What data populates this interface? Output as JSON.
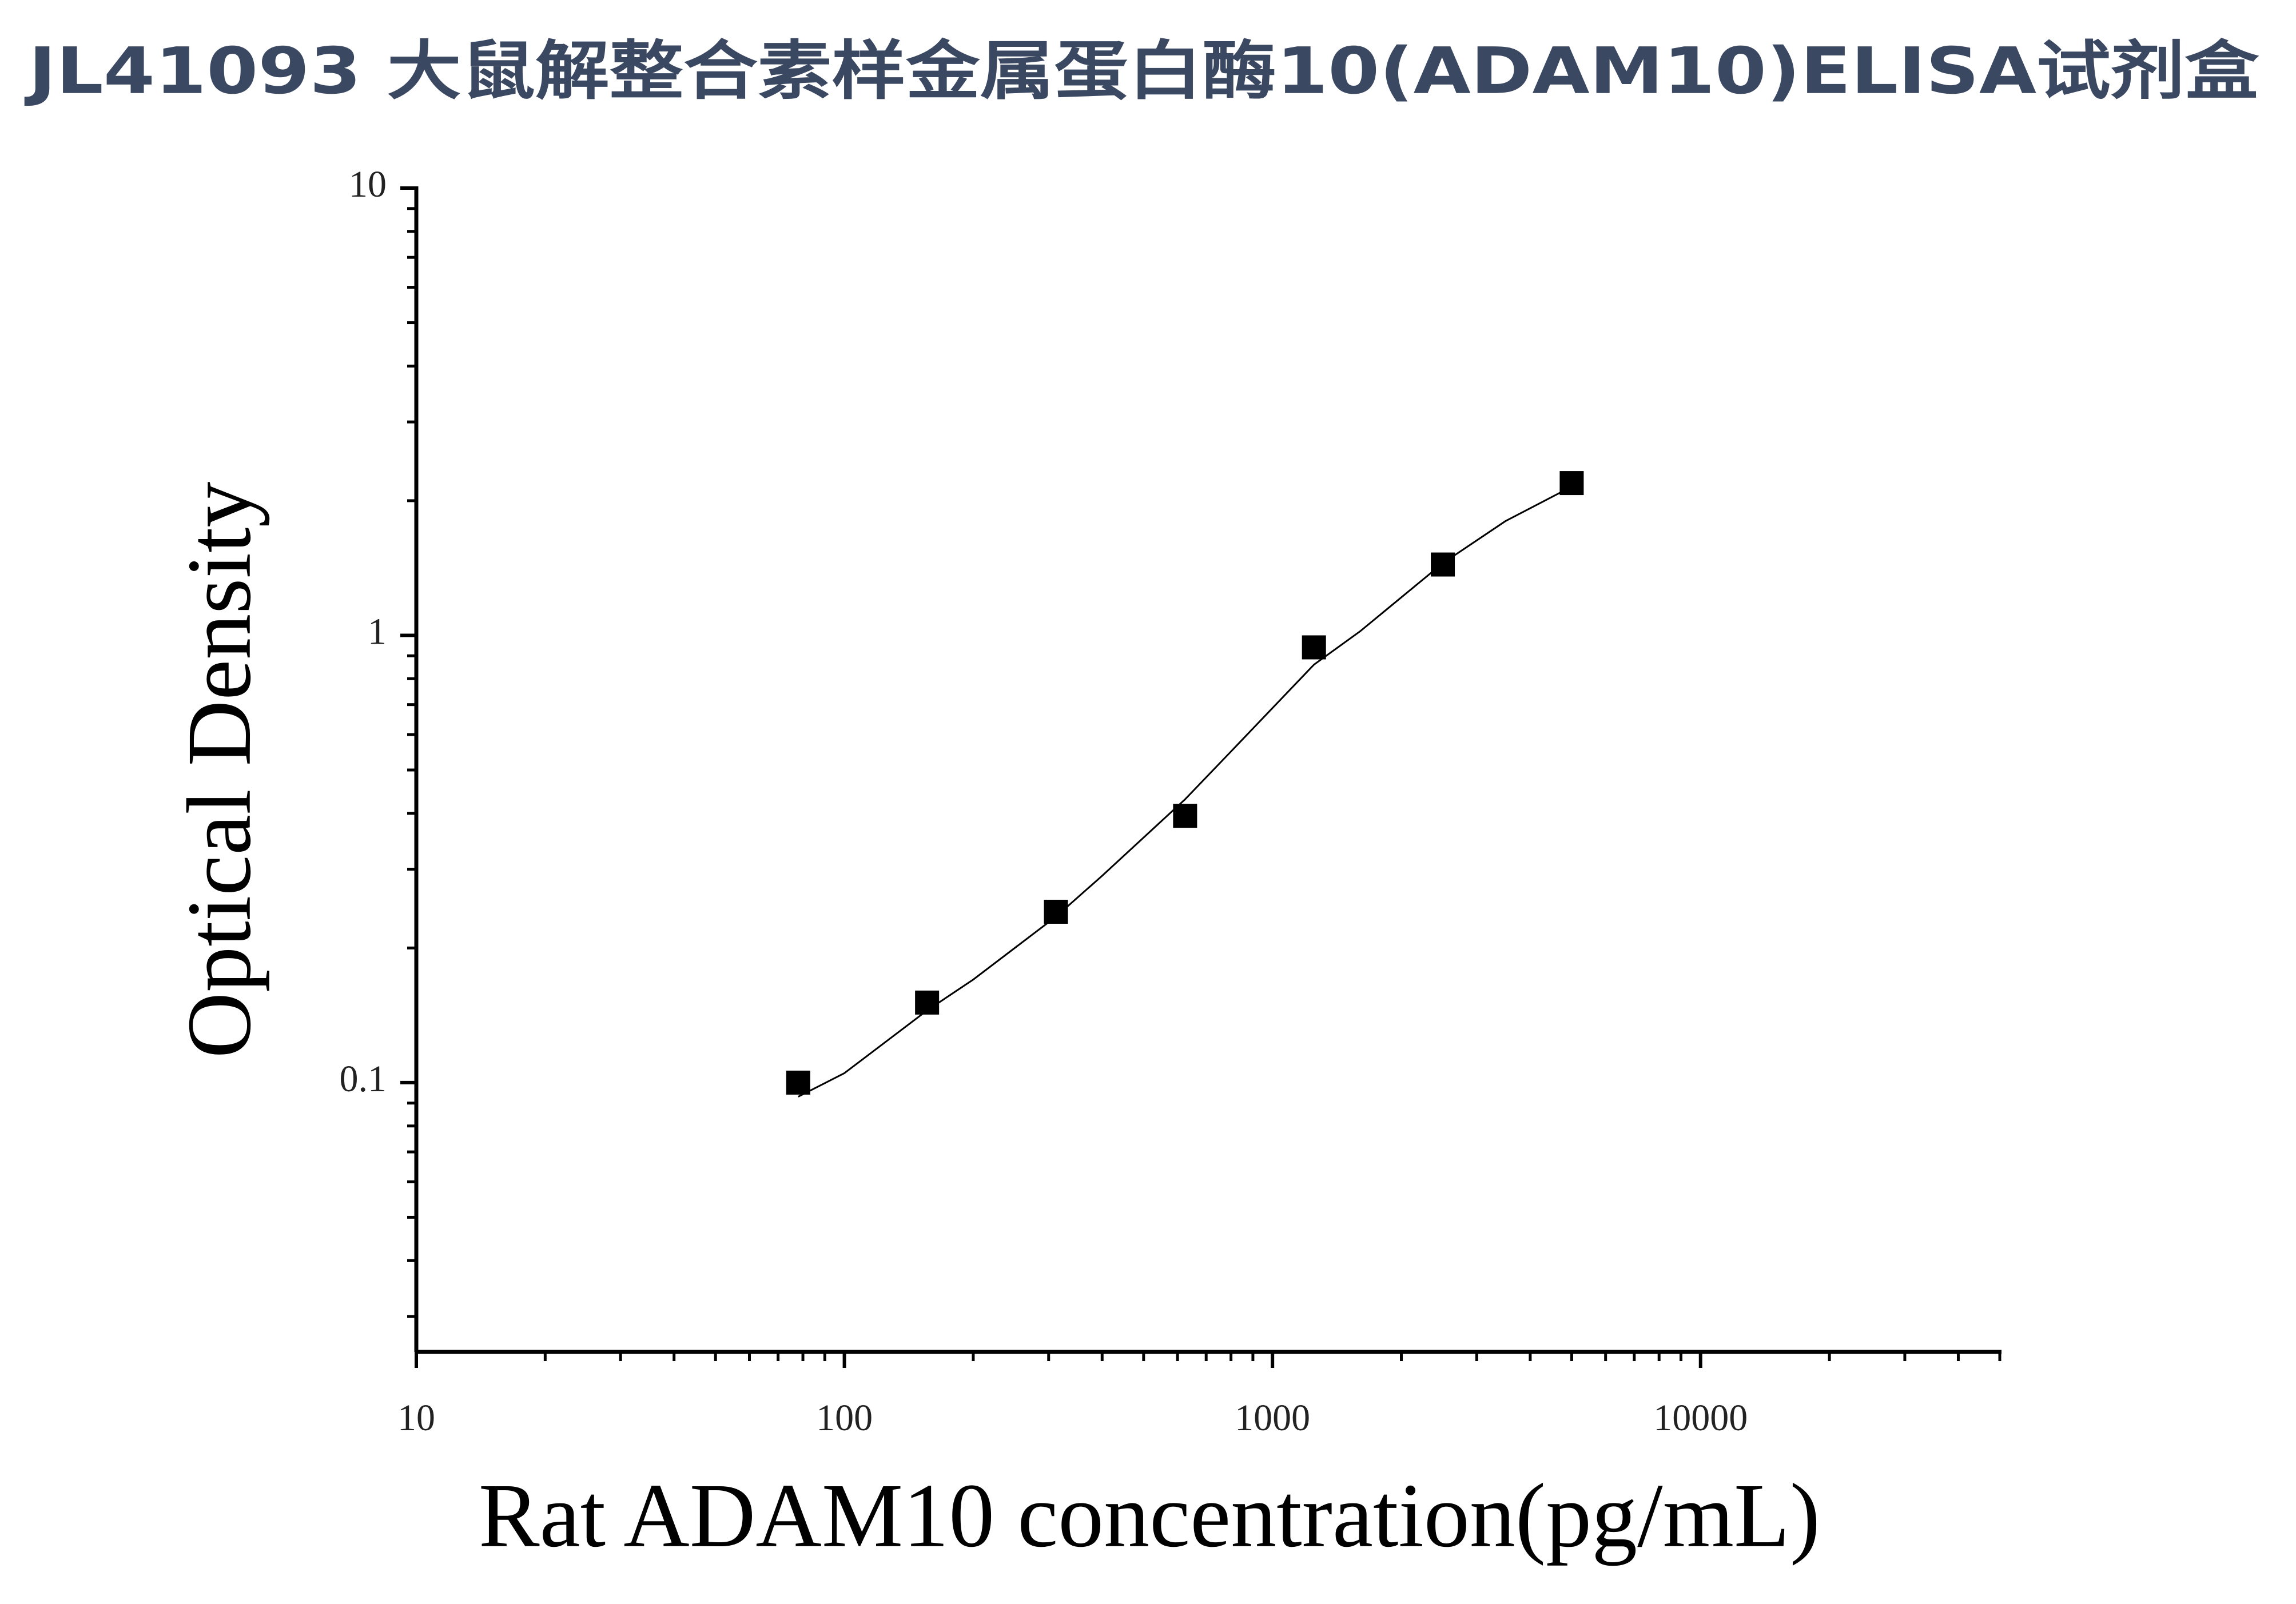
{
  "chart_data": {
    "type": "scatter",
    "title": "JL41093 大鼠解整合素样金属蛋白酶10(ADAM10)ELISA试剂盒",
    "x_label": "Rat ADAM10 concentration(pg/mL)",
    "y_label": "Optical Density",
    "x": [
      78,
      156,
      312,
      625,
      1250,
      2500,
      5000
    ],
    "values": [
      0.1,
      0.151,
      0.241,
      0.395,
      0.94,
      1.44,
      2.19
    ],
    "color": "#000000",
    "fit": {
      "x": [
        78,
        100,
        156,
        200,
        312,
        400,
        625,
        800,
        1250,
        1600,
        2500,
        3500,
        5000
      ],
      "values": [
        0.093,
        0.105,
        0.145,
        0.17,
        0.235,
        0.29,
        0.43,
        0.55,
        0.86,
        1.02,
        1.45,
        1.8,
        2.15
      ]
    },
    "xlim": [
      10,
      50000
    ],
    "ylim": [
      0.025,
      10
    ],
    "xticks": [
      10,
      100,
      1000,
      10000
    ],
    "yticks": [
      0.1,
      1,
      10
    ],
    "xminorticks": [
      20,
      30,
      40,
      50,
      60,
      70,
      80,
      90,
      200,
      300,
      400,
      500,
      600,
      700,
      800,
      900,
      2000,
      3000,
      4000,
      5000,
      6000,
      7000,
      8000,
      9000,
      20000,
      30000,
      40000,
      50000
    ],
    "yminorticks": [
      0.03,
      0.04,
      0.05,
      0.06,
      0.07,
      0.08,
      0.09,
      0.2,
      0.3,
      0.4,
      0.5,
      0.6,
      0.7,
      0.8,
      0.9,
      2,
      3,
      4,
      5,
      6,
      7,
      8,
      9
    ],
    "xlog": true,
    "ylog": true
  }
}
